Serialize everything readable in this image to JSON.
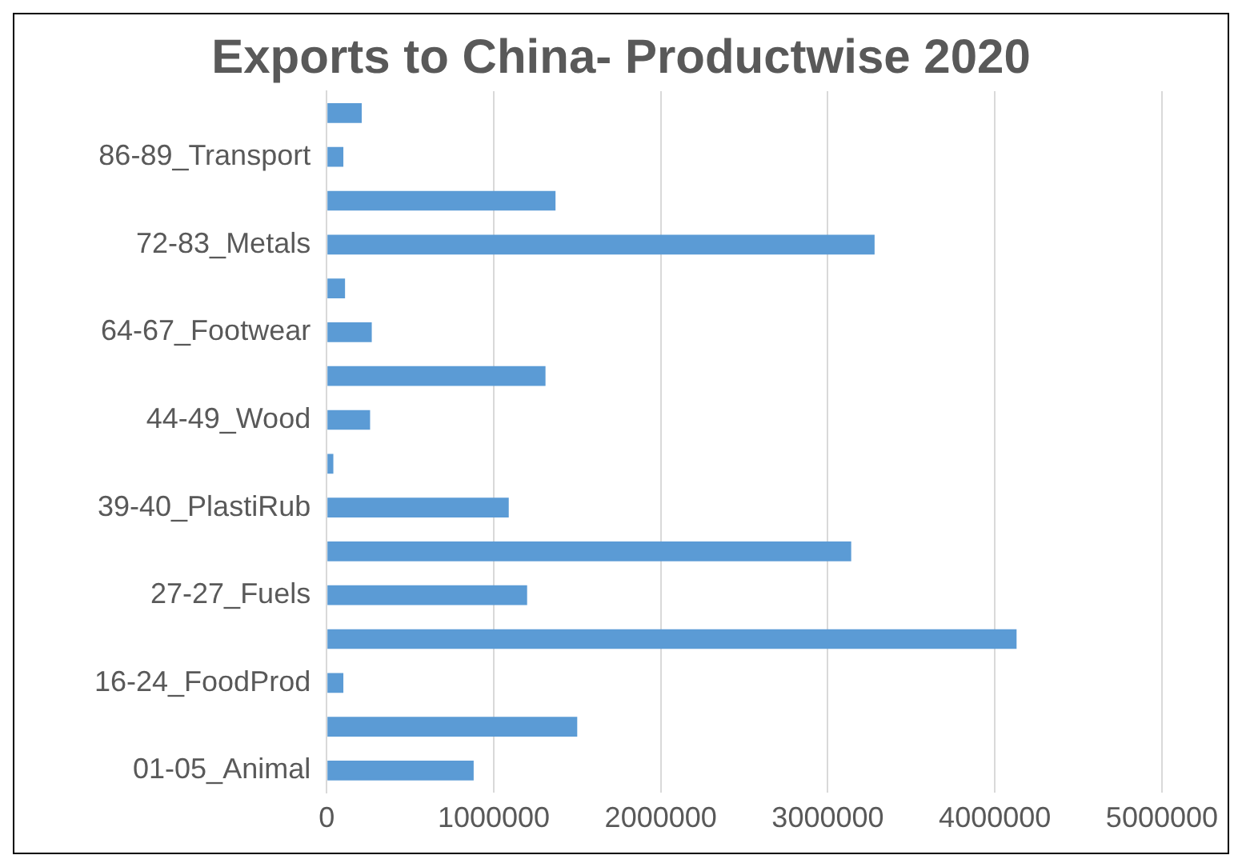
{
  "chart_data": {
    "type": "bar",
    "orientation": "horizontal",
    "title": "Exports to China- Productwise 2020",
    "categories": [
      null,
      "86-89_Transport",
      null,
      "72-83_Metals",
      null,
      "64-67_Footwear",
      null,
      "44-49_Wood",
      null,
      "39-40_PlastiRub",
      null,
      "27-27_Fuels",
      null,
      "16-24_FoodProd",
      null,
      "01-05_Animal"
    ],
    "values": [
      210000,
      100000,
      1370000,
      3280000,
      110000,
      270000,
      1310000,
      260000,
      40000,
      1090000,
      3140000,
      1200000,
      4130000,
      100000,
      1500000,
      880000
    ],
    "color": "#5b9bd5",
    "xlim": [
      0,
      5000000
    ],
    "xticks": [
      0,
      1000000,
      2000000,
      3000000,
      4000000,
      5000000
    ],
    "grid": "x",
    "legend": false
  }
}
